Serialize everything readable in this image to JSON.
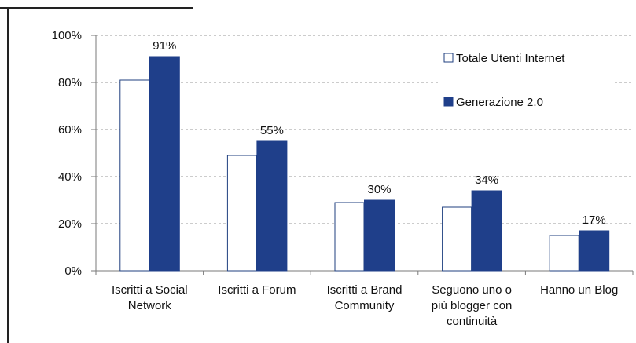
{
  "chart_data": {
    "type": "bar",
    "categories": [
      [
        "Iscritti a Social",
        "Network"
      ],
      [
        "Iscritti a Forum"
      ],
      [
        "Iscritti a Brand",
        "Community"
      ],
      [
        "Seguono uno o",
        "più blogger con",
        "continuità"
      ],
      [
        "Hanno un Blog"
      ]
    ],
    "series": [
      {
        "name": "Totale Utenti Internet",
        "values": [
          81,
          49,
          29,
          27,
          15
        ],
        "labels": [
          "",
          "",
          "",
          "",
          ""
        ],
        "color": "#ffffff",
        "stroke": "#1f3f7f"
      },
      {
        "name": "Generazione 2.0",
        "values": [
          91,
          55,
          30,
          34,
          17
        ],
        "labels": [
          "91%",
          "55%",
          "30%",
          "34%",
          "17%"
        ],
        "color": "#1f3f8a",
        "stroke": "#1f3f8a"
      }
    ],
    "ylim": [
      0,
      100
    ],
    "yticks": [
      0,
      20,
      40,
      60,
      80,
      100
    ],
    "ytick_labels": [
      "0%",
      "20%",
      "40%",
      "60%",
      "80%",
      "100%"
    ],
    "grid": true,
    "legend_position": "top-right",
    "title": "",
    "xlabel": "",
    "ylabel": ""
  }
}
